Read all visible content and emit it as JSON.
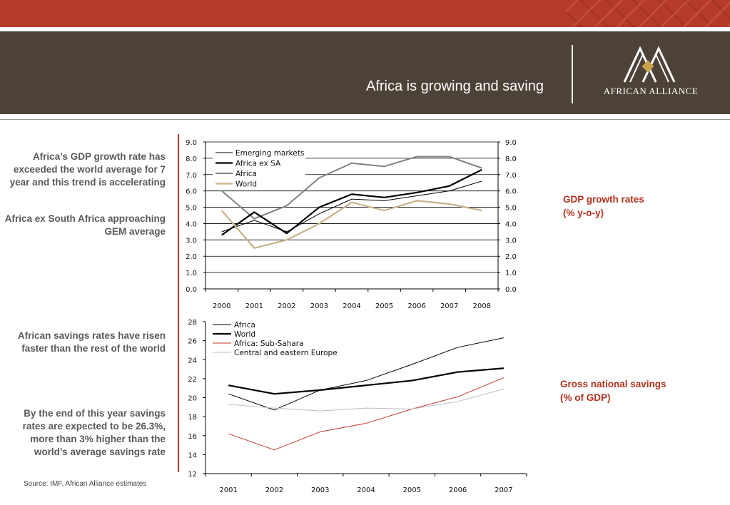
{
  "header": {
    "title": "Africa is growing and saving",
    "logo_text": "AFRICAN ALLIANCE"
  },
  "left_notes": [
    "Africa’s GDP growth rate has exceeded the  world average for 7 year and this trend is accelerating",
    "Africa ex South Africa approaching GEM average",
    "African savings rates have risen faster than the rest of the world",
    "By the end of this year savings rates are expected to be 26.3%, more than 3% higher than the world’s average savings rate"
  ],
  "source": "Source:  IMF, African Alliance estimates",
  "chart_labels": {
    "gdp": "GDP growth rates\n(% y-o-y)",
    "savings": "Gross national savings\n(% of GDP)"
  },
  "colors": {
    "accent": "#b5321f",
    "band": "#4d4237",
    "topbar": "#b53a2a"
  },
  "chart_data": [
    {
      "type": "line",
      "title": "GDP growth rates (% y-o-y)",
      "x": [
        "2000",
        "2001",
        "2002",
        "2003",
        "2004",
        "2005",
        "2006",
        "2007",
        "2008"
      ],
      "ylim": [
        0,
        9
      ],
      "yticks": [
        "0.0",
        "1.0",
        "2.0",
        "3.0",
        "4.0",
        "5.0",
        "6.0",
        "7.0",
        "8.0",
        "9.0"
      ],
      "grid": true,
      "legend_position": "top-left",
      "series": [
        {
          "name": "Emerging markets",
          "color": "#808080",
          "width": 2,
          "values": [
            6.0,
            4.3,
            5.1,
            6.8,
            7.7,
            7.5,
            8.1,
            8.1,
            7.4
          ]
        },
        {
          "name": "Africa ex SA",
          "color": "#000000",
          "width": 2.2,
          "values": [
            3.3,
            4.7,
            3.4,
            5.0,
            5.8,
            5.6,
            5.9,
            6.3,
            7.3
          ]
        },
        {
          "name": "Africa",
          "color": "#000000",
          "width": 1,
          "values": [
            3.5,
            4.2,
            3.5,
            4.6,
            5.5,
            5.4,
            5.7,
            6.0,
            6.6
          ]
        },
        {
          "name": "World",
          "color": "#c8b28a",
          "width": 2.2,
          "values": [
            4.8,
            2.5,
            3.0,
            4.0,
            5.3,
            4.8,
            5.4,
            5.2,
            4.8
          ]
        }
      ]
    },
    {
      "type": "line",
      "title": "Gross national savings (% of GDP)",
      "x": [
        "2001",
        "2002",
        "2003",
        "2004",
        "2005",
        "2006",
        "2007"
      ],
      "ylim": [
        12,
        28
      ],
      "yticks": [
        "12",
        "14",
        "16",
        "18",
        "20",
        "22",
        "24",
        "26",
        "28"
      ],
      "grid": false,
      "legend_position": "top-left",
      "series": [
        {
          "name": "Africa",
          "color": "#000000",
          "width": 1,
          "values": [
            20.4,
            18.7,
            20.8,
            21.8,
            23.5,
            25.3,
            26.3
          ]
        },
        {
          "name": "World",
          "color": "#000000",
          "width": 2.2,
          "values": [
            21.3,
            20.4,
            20.8,
            21.3,
            21.8,
            22.7,
            23.1
          ]
        },
        {
          "name": "Africa: Sub-Sahara",
          "color": "#c0392b",
          "width": 1,
          "values": [
            16.2,
            14.5,
            16.4,
            17.3,
            18.8,
            20.1,
            22.1
          ]
        },
        {
          "name": "Central and eastern Europe",
          "color": "#bdbdbd",
          "width": 1,
          "values": [
            19.3,
            18.9,
            18.6,
            18.9,
            18.8,
            19.6,
            20.9
          ]
        }
      ]
    }
  ]
}
